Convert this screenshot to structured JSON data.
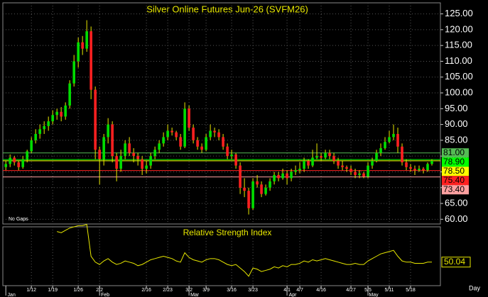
{
  "chart_data": {
    "type": "candlestick",
    "title": "Silver Online Futures Jun-26 (SVFM26)",
    "note": "No Gaps",
    "x_unit": "Day",
    "up_color": "#00dd00",
    "down_color": "#ff2020",
    "grid": true,
    "ylim": [
      58.5,
      128.5
    ],
    "yticks": [
      {
        "value": 60,
        "label": "60.00"
      },
      {
        "value": 65,
        "label": "65.00"
      },
      {
        "value": 70,
        "label": "70.00"
      },
      {
        "value": 75,
        "label": "75.00"
      },
      {
        "value": 80,
        "label": "80.00"
      },
      {
        "value": 85,
        "label": "85.00"
      },
      {
        "value": 90,
        "label": "90.00"
      },
      {
        "value": 95,
        "label": "95.00"
      },
      {
        "value": 100,
        "label": "100.00"
      },
      {
        "value": 105,
        "label": "105.00"
      },
      {
        "value": 110,
        "label": "110.00"
      },
      {
        "value": 115,
        "label": "115.00"
      },
      {
        "value": 120,
        "label": "120.00"
      },
      {
        "value": 125,
        "label": "125.00"
      }
    ],
    "xlim": [
      -0.7,
      102
    ],
    "xticks": [
      {
        "value": 6,
        "label": "1/12"
      },
      {
        "value": 11,
        "label": "1/19"
      },
      {
        "value": 17,
        "label": "1/26"
      },
      {
        "value": 22,
        "label": "2/2"
      },
      {
        "value": 33,
        "label": "2/16"
      },
      {
        "value": 38,
        "label": "2/23"
      },
      {
        "value": 43,
        "label": "3/2"
      },
      {
        "value": 47,
        "label": "3/9"
      },
      {
        "value": 53,
        "label": "3/16"
      },
      {
        "value": 58,
        "label": "3/23"
      },
      {
        "value": 66,
        "label": "4/1"
      },
      {
        "value": 69,
        "label": "4/7"
      },
      {
        "value": 74,
        "label": "4/16"
      },
      {
        "value": 81,
        "label": "4/27"
      },
      {
        "value": 85,
        "label": "5/5"
      },
      {
        "value": 90,
        "label": "5/11"
      },
      {
        "value": 95,
        "label": "5/18"
      }
    ],
    "month_ticks": [
      {
        "value": 0,
        "label": "Jan"
      },
      {
        "value": 22,
        "label": "Feb"
      },
      {
        "value": 43,
        "label": "Mar"
      },
      {
        "value": 66,
        "label": "Apr"
      },
      {
        "value": 85,
        "label": "May"
      }
    ],
    "levels": [
      {
        "value": 81,
        "label": "81.00",
        "color": "#55bb55"
      },
      {
        "value": 78.9,
        "label": "78.90",
        "color": "#00ff00"
      },
      {
        "value": 78.5,
        "label": "78.50",
        "color": "#ffff00"
      },
      {
        "value": 75.4,
        "label": "75.40",
        "color": "#ff2020"
      },
      {
        "value": 73.4,
        "label": "73.40",
        "color": "#ffa0a0"
      }
    ],
    "candles": [
      [
        76.5,
        78.5,
        75.5,
        77.5
      ],
      [
        77.5,
        80.5,
        76.5,
        79.5
      ],
      [
        79.5,
        80,
        77,
        78
      ],
      [
        78,
        78.5,
        75.5,
        76.5
      ],
      [
        76.5,
        80,
        76,
        79
      ],
      [
        79,
        82,
        78,
        81.5
      ],
      [
        81.5,
        86,
        81,
        85
      ],
      [
        85,
        88.5,
        84,
        87
      ],
      [
        87,
        90,
        85.5,
        88.5
      ],
      [
        88.5,
        91,
        87,
        89.5
      ],
      [
        89.5,
        92.5,
        88,
        91
      ],
      [
        91,
        94.5,
        90,
        93
      ],
      [
        93,
        95,
        91.5,
        94
      ],
      [
        94,
        95.5,
        91,
        92.5
      ],
      [
        92.5,
        97,
        91.5,
        96
      ],
      [
        96,
        104,
        95,
        103
      ],
      [
        103,
        112,
        102,
        110
      ],
      [
        110,
        117.5,
        108,
        116
      ],
      [
        116,
        118,
        112,
        114
      ],
      [
        114,
        123,
        113,
        119.5
      ],
      [
        119.5,
        121,
        98,
        101
      ],
      [
        101,
        102,
        79,
        82
      ],
      [
        82,
        83,
        71,
        79
      ],
      [
        79,
        87,
        77,
        86
      ],
      [
        86,
        92,
        84,
        90
      ],
      [
        90,
        91,
        78,
        80
      ],
      [
        80,
        81,
        72,
        76
      ],
      [
        76,
        82,
        75,
        80
      ],
      [
        80,
        85,
        79,
        84
      ],
      [
        84,
        86,
        80,
        81
      ],
      [
        81,
        82.5,
        78,
        80
      ],
      [
        80,
        81,
        77,
        79
      ],
      [
        79,
        80,
        74,
        76
      ],
      [
        76,
        78.5,
        74.5,
        77
      ],
      [
        77,
        81,
        76,
        80
      ],
      [
        80,
        83,
        79,
        82
      ],
      [
        82,
        85,
        81,
        84
      ],
      [
        84,
        87.5,
        83,
        86
      ],
      [
        86,
        90,
        85,
        88
      ],
      [
        88,
        89,
        86.5,
        87.5
      ],
      [
        87.5,
        88,
        85,
        86
      ],
      [
        86,
        87,
        82,
        83
      ],
      [
        83,
        97,
        82.5,
        95
      ],
      [
        95,
        96,
        88,
        89
      ],
      [
        89,
        90,
        84,
        85
      ],
      [
        85,
        86,
        82,
        83
      ],
      [
        83,
        84,
        81,
        82
      ],
      [
        82,
        87,
        81.5,
        86
      ],
      [
        86,
        90,
        85,
        88
      ],
      [
        88,
        89,
        86,
        87.5
      ],
      [
        87.5,
        88.5,
        85,
        86
      ],
      [
        86,
        87,
        82,
        83
      ],
      [
        83,
        84,
        79,
        80
      ],
      [
        80,
        82,
        79,
        80.5
      ],
      [
        80.5,
        81,
        76,
        77
      ],
      [
        77,
        78,
        68,
        70
      ],
      [
        70,
        73,
        67,
        69
      ],
      [
        69,
        70,
        61.5,
        63.5
      ],
      [
        63.5,
        73,
        63,
        72
      ],
      [
        72,
        74,
        70,
        71
      ],
      [
        71,
        72,
        67,
        68
      ],
      [
        68,
        71,
        67.5,
        70
      ],
      [
        70,
        73,
        69,
        72
      ],
      [
        72,
        75,
        71,
        74
      ],
      [
        74,
        75,
        72,
        73
      ],
      [
        73,
        76,
        72.5,
        74.5
      ],
      [
        74.5,
        75.5,
        71,
        73
      ],
      [
        73,
        76,
        72,
        75
      ],
      [
        75,
        77,
        74,
        75.5
      ],
      [
        75.5,
        78,
        74.5,
        76
      ],
      [
        76,
        79.5,
        75,
        78.5
      ],
      [
        78.5,
        79,
        76,
        77
      ],
      [
        77,
        82,
        76.5,
        79.5
      ],
      [
        79.5,
        84,
        79,
        80
      ],
      [
        80,
        81,
        78.5,
        79.5
      ],
      [
        79.5,
        82,
        79,
        81
      ],
      [
        81,
        82,
        79,
        80
      ],
      [
        80,
        81,
        77.5,
        78.5
      ],
      [
        78.5,
        79.5,
        76,
        77
      ],
      [
        77,
        78.5,
        75.5,
        76.5
      ],
      [
        76.5,
        77,
        75,
        76
      ],
      [
        76,
        77,
        74,
        75
      ],
      [
        75,
        76,
        73,
        74
      ],
      [
        74,
        75.5,
        73,
        74.5
      ],
      [
        74.5,
        75,
        73,
        73.5
      ],
      [
        73.5,
        78,
        73,
        77
      ],
      [
        77,
        79.5,
        76,
        78.5
      ],
      [
        78.5,
        82,
        78,
        81
      ],
      [
        81,
        84,
        80,
        82.5
      ],
      [
        82.5,
        86,
        82,
        84.5
      ],
      [
        84.5,
        88,
        84,
        86
      ],
      [
        86,
        90,
        85,
        87
      ],
      [
        87,
        89,
        81,
        83
      ],
      [
        83,
        84,
        77,
        78
      ],
      [
        78,
        79,
        75.5,
        76.5
      ],
      [
        76.5,
        77.5,
        75,
        76
      ],
      [
        76,
        77,
        74,
        75.5
      ],
      [
        75.5,
        77,
        75,
        76
      ],
      [
        76,
        76.5,
        74.5,
        75.5
      ],
      [
        75.5,
        78,
        75,
        77.5
      ],
      [
        77.5,
        79,
        77,
        78.5
      ]
    ],
    "rsi": {
      "title": "Relative Strength Index",
      "color": "#e8e800",
      "ylim": [
        30,
        80
      ],
      "values": [
        null,
        null,
        null,
        null,
        null,
        null,
        null,
        null,
        null,
        null,
        null,
        null,
        76,
        75,
        77,
        79,
        80,
        81,
        81,
        82,
        55,
        50,
        48,
        51,
        53,
        50,
        48,
        49,
        51,
        50,
        49,
        47,
        48,
        50,
        52,
        53,
        54,
        55,
        54,
        53,
        51,
        50,
        58,
        54,
        52,
        51,
        50,
        52,
        53,
        53,
        52,
        50,
        48,
        47,
        48,
        45,
        42,
        38,
        45,
        44,
        42,
        43,
        44,
        46,
        45,
        47,
        46,
        48,
        48,
        49,
        51,
        50,
        52,
        51,
        52,
        53,
        52,
        51,
        50,
        49,
        48,
        48,
        49,
        48,
        48,
        51,
        53,
        55,
        57,
        58,
        59,
        60,
        55,
        51,
        50,
        50,
        49,
        49,
        49,
        50,
        50.04
      ]
    }
  }
}
